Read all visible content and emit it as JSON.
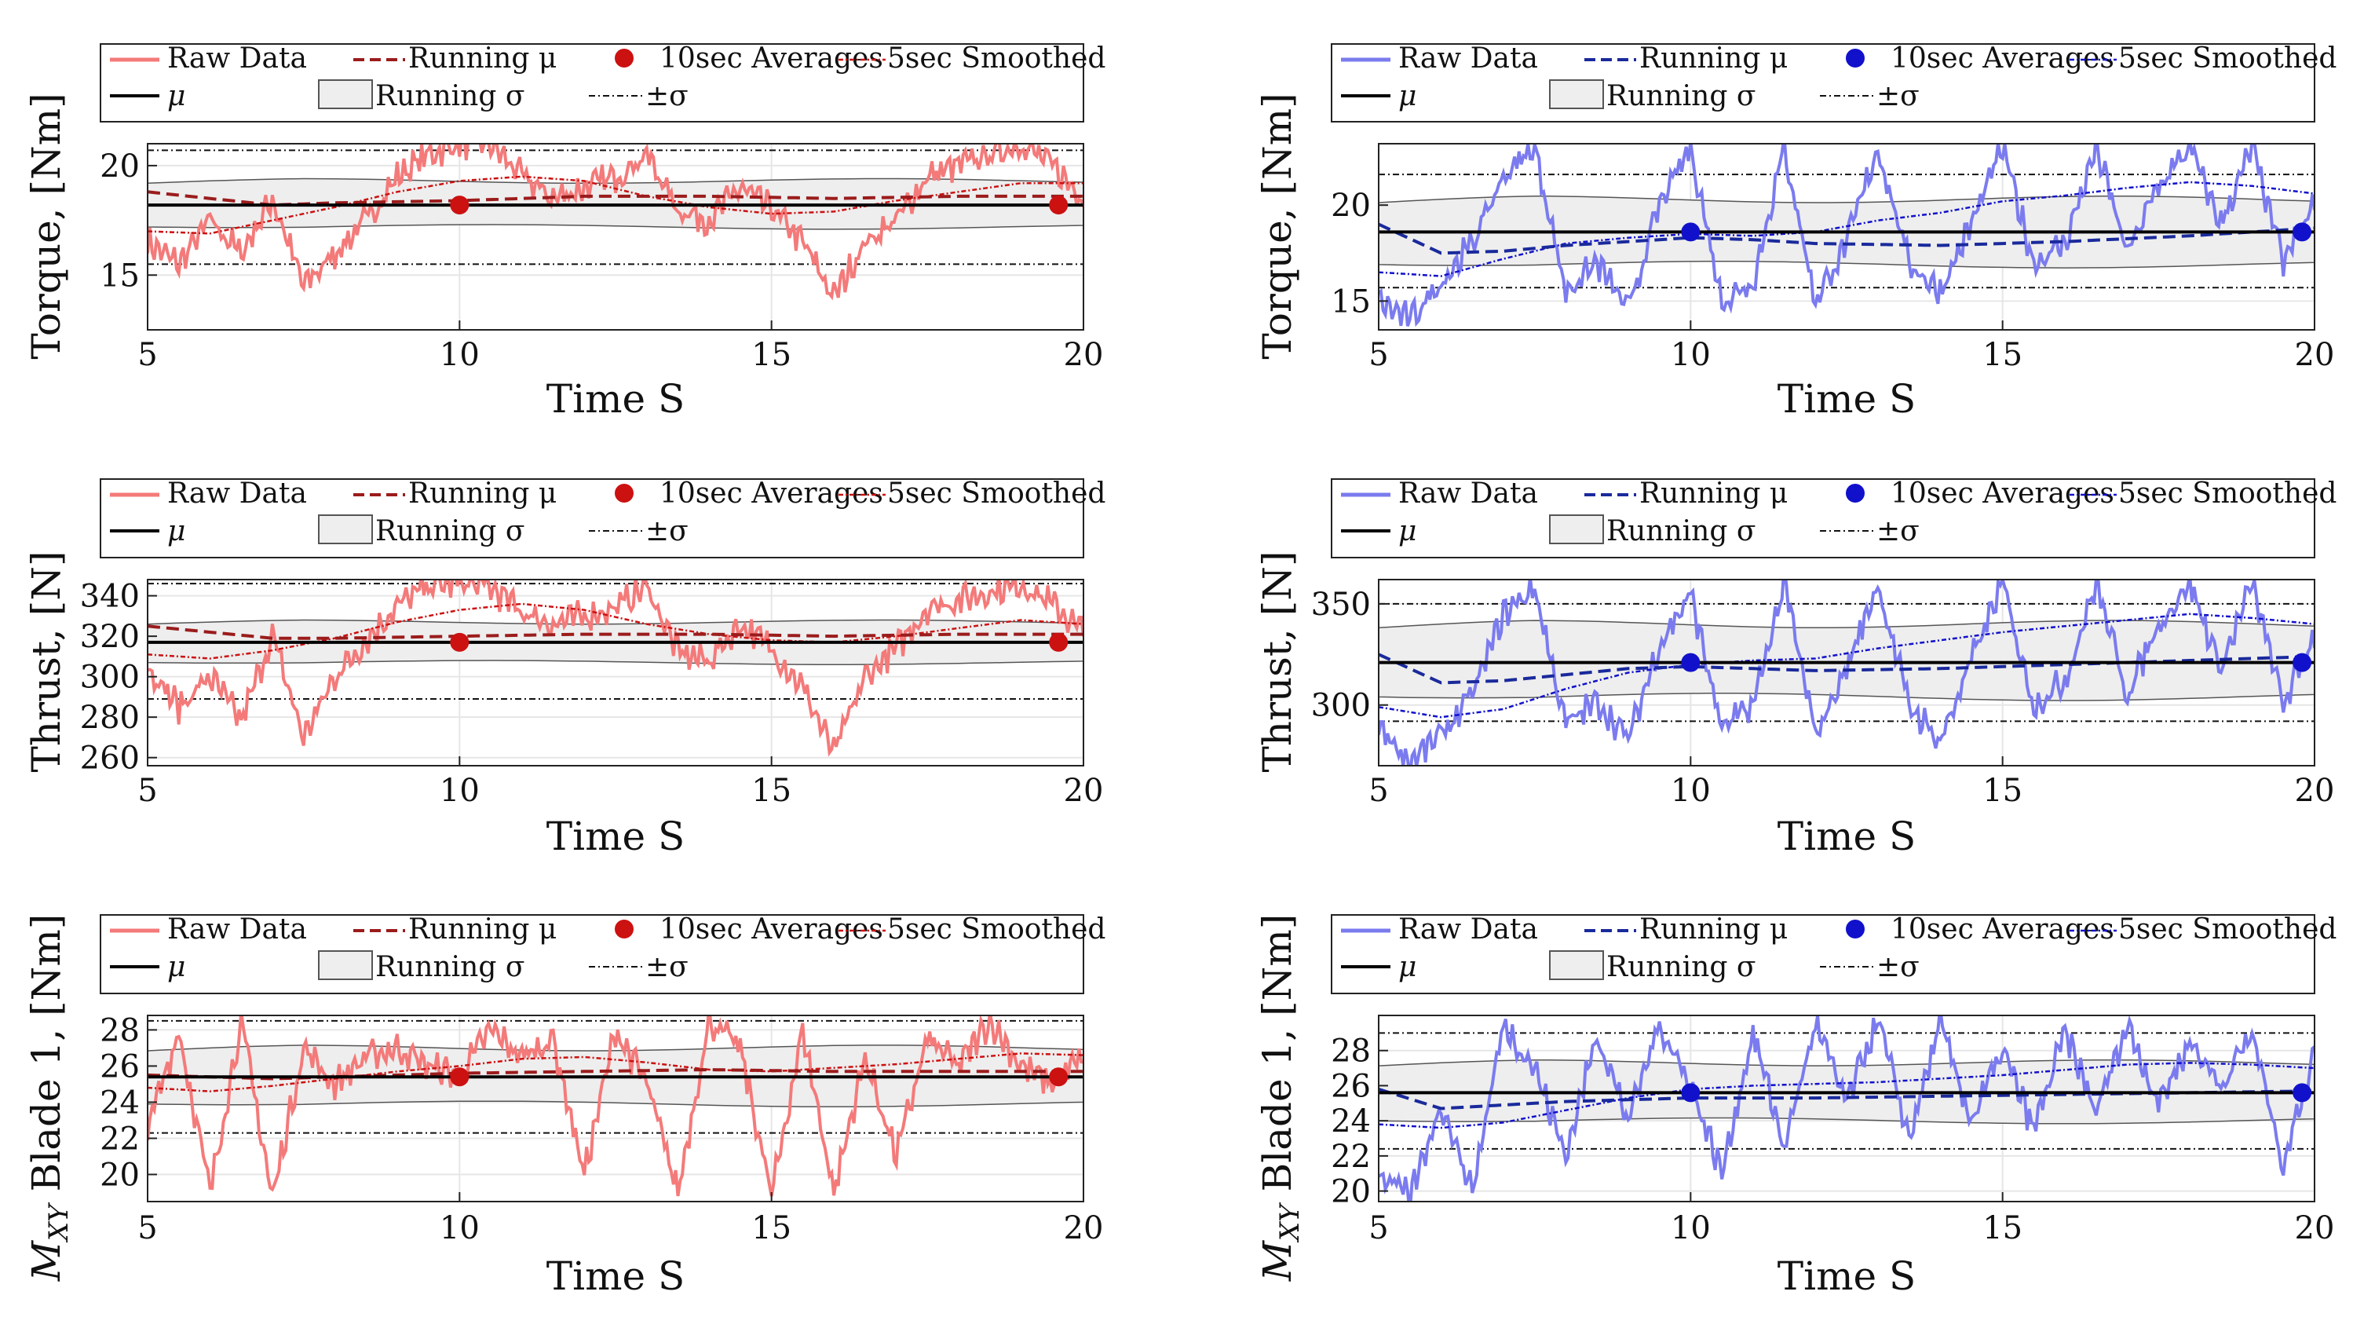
{
  "chart_data": [
    {
      "type": "line",
      "panel": "left-top",
      "color": "#f47a7a",
      "dark": "#9b1c1c",
      "dot": "#cc1111",
      "title": "",
      "xlabel": "Time S",
      "ylabel": "Torque, [Nm]",
      "xlim": [
        5,
        20
      ],
      "ylim": [
        12.5,
        21
      ],
      "xticks": [
        5,
        10,
        15,
        20
      ],
      "yticks": [
        15,
        20
      ],
      "mu": 18.2,
      "sigma_band": [
        17.2,
        19.3
      ],
      "pm_sigma": [
        15.5,
        20.7
      ],
      "averages": {
        "x": [
          10,
          19.6
        ],
        "y": [
          18.2,
          18.2
        ]
      },
      "running_mu": {
        "x": [
          5,
          6,
          7,
          8,
          10,
          12,
          14,
          16,
          18,
          20
        ],
        "y": [
          18.8,
          18.5,
          18.2,
          18.3,
          18.4,
          18.6,
          18.6,
          18.5,
          18.6,
          18.6
        ]
      },
      "smoothed": {
        "x": [
          5,
          6,
          7,
          8,
          9,
          10,
          11,
          12,
          13,
          14,
          15,
          16,
          17,
          18,
          19,
          20
        ],
        "y": [
          17.0,
          16.9,
          17.5,
          18.1,
          18.8,
          19.3,
          19.5,
          19.3,
          18.6,
          18.1,
          17.8,
          17.9,
          18.4,
          18.8,
          19.2,
          19.2
        ]
      },
      "raw_envelope": {
        "x": [
          5,
          5.5,
          6,
          6.5,
          7,
          7.5,
          8,
          8.5,
          9,
          9.5,
          10,
          10.5,
          11,
          11.5,
          12,
          12.5,
          13,
          13.5,
          14,
          14.5,
          15,
          15.5,
          16,
          16.5,
          17,
          17.5,
          18,
          18.5,
          19,
          19.5,
          20
        ],
        "y": [
          16.5,
          15.5,
          17.5,
          16.0,
          18.5,
          14.5,
          16.0,
          17.5,
          19.5,
          20.5,
          21.0,
          21.0,
          19.5,
          18.5,
          19.0,
          19.5,
          20.5,
          18.0,
          17.5,
          19.0,
          18.0,
          16.5,
          14.0,
          16.5,
          17.5,
          19.5,
          20.0,
          20.5,
          21.0,
          20.0,
          18.5
        ]
      },
      "legend": {
        "raw": "Raw Data",
        "run_mu": "Running μ",
        "avg": "10sec Averages",
        "smooth": "5sec Smoothed",
        "mu": "μ",
        "run_sigma": "Running σ",
        "pm": "±σ"
      }
    },
    {
      "type": "line",
      "panel": "left-middle",
      "color": "#f47a7a",
      "dark": "#9b1c1c",
      "dot": "#cc1111",
      "title": "",
      "xlabel": "Time S",
      "ylabel": "Thrust, [N]",
      "xlim": [
        5,
        20
      ],
      "ylim": [
        256,
        348
      ],
      "xticks": [
        5,
        10,
        15,
        20
      ],
      "yticks": [
        260,
        280,
        300,
        320,
        340
      ],
      "mu": 317,
      "sigma_band": [
        307,
        327
      ],
      "pm_sigma": [
        289,
        346
      ],
      "averages": {
        "x": [
          10,
          19.6
        ],
        "y": [
          317,
          317
        ]
      },
      "running_mu": {
        "x": [
          5,
          6,
          7,
          8,
          10,
          12,
          14,
          16,
          18,
          20
        ],
        "y": [
          325,
          322,
          319,
          319,
          320,
          321,
          321,
          320,
          321,
          321
        ]
      },
      "smoothed": {
        "x": [
          5,
          6,
          7,
          8,
          9,
          10,
          11,
          12,
          13,
          14,
          15,
          16,
          17,
          18,
          19,
          20
        ],
        "y": [
          311,
          309,
          313,
          319,
          327,
          333,
          336,
          333,
          326,
          321,
          318,
          317,
          320,
          324,
          328,
          326
        ]
      },
      "raw_envelope": {
        "x": [
          5,
          5.5,
          6,
          6.5,
          7,
          7.5,
          8,
          8.5,
          9,
          9.5,
          10,
          10.5,
          11,
          11.5,
          12,
          12.5,
          13,
          13.5,
          14,
          14.5,
          15,
          15.5,
          16,
          16.5,
          17,
          17.5,
          18,
          18.5,
          19,
          19.5,
          20
        ],
        "y": [
          305,
          285,
          300,
          278,
          320,
          270,
          300,
          318,
          335,
          345,
          346,
          344,
          332,
          326,
          330,
          334,
          345,
          312,
          308,
          326,
          314,
          295,
          262,
          300,
          314,
          334,
          338,
          342,
          346,
          336,
          322
        ]
      },
      "legend": {
        "raw": "Raw Data",
        "run_mu": "Running μ",
        "avg": "10sec Averages",
        "smooth": "5sec Smoothed",
        "mu": "μ",
        "run_sigma": "Running σ",
        "pm": "±σ"
      }
    },
    {
      "type": "line",
      "panel": "left-bottom",
      "color": "#f47a7a",
      "dark": "#9b1c1c",
      "dot": "#cc1111",
      "title": "",
      "xlabel": "Time S",
      "ylabel": "M_XY Blade 1, [Nm]",
      "xlim": [
        5,
        20
      ],
      "ylim": [
        18.5,
        28.8
      ],
      "xticks": [
        5,
        10,
        15,
        20
      ],
      "yticks": [
        20,
        22,
        24,
        26,
        28
      ],
      "mu": 25.4,
      "sigma_band": [
        23.9,
        27.0
      ],
      "pm_sigma": [
        22.3,
        28.5
      ],
      "averages": {
        "x": [
          10,
          19.6
        ],
        "y": [
          25.4,
          25.4
        ]
      },
      "running_mu": {
        "x": [
          5,
          6,
          7,
          8,
          10,
          12,
          14,
          16,
          18,
          20
        ],
        "y": [
          25.5,
          25.4,
          25.3,
          25.4,
          25.6,
          25.7,
          25.8,
          25.7,
          25.7,
          25.7
        ]
      },
      "smoothed": {
        "x": [
          5,
          6,
          7,
          8,
          9,
          10,
          11,
          12,
          13,
          14,
          15,
          16,
          17,
          18,
          19,
          20
        ],
        "y": [
          24.8,
          24.6,
          24.9,
          25.3,
          25.7,
          26.0,
          26.4,
          26.5,
          26.2,
          25.8,
          25.7,
          25.9,
          26.1,
          26.4,
          26.7,
          26.6
        ]
      },
      "raw_envelope": {
        "x": [
          5,
          5.5,
          6,
          6.5,
          7,
          7.5,
          8,
          8.5,
          9,
          9.5,
          10,
          10.5,
          11,
          11.5,
          12,
          12.5,
          13,
          13.5,
          14,
          14.5,
          15,
          15.5,
          16,
          16.5,
          17,
          17.5,
          18,
          18.5,
          19,
          19.5,
          20
        ],
        "y": [
          22.5,
          28.0,
          19.0,
          28.5,
          18.7,
          27.0,
          25.0,
          26.5,
          27.0,
          26.0,
          25.5,
          28.0,
          26.5,
          27.5,
          20.0,
          28.0,
          25.0,
          19.0,
          28.5,
          27.0,
          18.8,
          28.0,
          19.0,
          26.5,
          21.0,
          27.5,
          26.0,
          28.5,
          26.0,
          25.0,
          26.5
        ]
      },
      "legend": {
        "raw": "Raw Data",
        "run_mu": "Running μ",
        "avg": "10sec Averages",
        "smooth": "5sec Smoothed",
        "mu": "μ",
        "run_sigma": "Running σ",
        "pm": "±σ"
      }
    },
    {
      "type": "line",
      "panel": "right-top",
      "color": "#7b7bef",
      "dark": "#1a2a9c",
      "dot": "#1111cc",
      "title": "",
      "xlabel": "Time S",
      "ylabel": "Torque, [Nm]",
      "xlim": [
        5,
        20
      ],
      "ylim": [
        13.5,
        23.2
      ],
      "xticks": [
        5,
        10,
        15,
        20
      ],
      "yticks": [
        15,
        20
      ],
      "mu": 18.6,
      "sigma_band": [
        16.9,
        20.3
      ],
      "pm_sigma": [
        15.7,
        21.6
      ],
      "averages": {
        "x": [
          10,
          19.8
        ],
        "y": [
          18.6,
          18.6
        ]
      },
      "running_mu": {
        "x": [
          5,
          6,
          7,
          8,
          9,
          10,
          11,
          12,
          14,
          16,
          18,
          20
        ],
        "y": [
          19.0,
          17.5,
          17.6,
          17.9,
          18.1,
          18.3,
          18.2,
          18.0,
          17.9,
          18.1,
          18.4,
          18.8
        ]
      },
      "smoothed": {
        "x": [
          5,
          6,
          7,
          8,
          9,
          10,
          11,
          12,
          13,
          14,
          15,
          16,
          17,
          18,
          19,
          20
        ],
        "y": [
          16.5,
          16.3,
          17.2,
          18.0,
          18.3,
          18.5,
          18.4,
          18.6,
          19.2,
          19.6,
          20.2,
          20.5,
          20.9,
          21.2,
          21.0,
          20.6
        ]
      },
      "raw_envelope": {
        "x": [
          5,
          5.5,
          6,
          6.5,
          7,
          7.5,
          8,
          8.5,
          9,
          9.5,
          10,
          10.5,
          11,
          11.5,
          12,
          12.5,
          13,
          13.5,
          14,
          14.5,
          15,
          15.5,
          16,
          16.5,
          17,
          17.5,
          18,
          18.5,
          19,
          19.5,
          20
        ],
        "y": [
          15.0,
          14.0,
          16.0,
          18.0,
          21.5,
          23.0,
          15.5,
          17.0,
          14.5,
          20.0,
          23.0,
          15.0,
          16.0,
          23.0,
          15.0,
          18.0,
          23.0,
          17.0,
          15.5,
          19.0,
          23.0,
          17.0,
          18.0,
          23.0,
          17.5,
          21.0,
          23.0,
          19.0,
          23.0,
          17.0,
          20.0
        ]
      },
      "legend": {
        "raw": "Raw Data",
        "run_mu": "Running μ",
        "avg": "10sec Averages",
        "smooth": "5sec Smoothed",
        "mu": "μ",
        "run_sigma": "Running σ",
        "pm": "±σ"
      }
    },
    {
      "type": "line",
      "panel": "right-middle",
      "color": "#7b7bef",
      "dark": "#1a2a9c",
      "dot": "#1111cc",
      "title": "",
      "xlabel": "Time S",
      "ylabel": "Thrust, [N]",
      "xlim": [
        5,
        20
      ],
      "ylim": [
        270,
        362
      ],
      "xticks": [
        5,
        10,
        15,
        20
      ],
      "yticks": [
        300,
        350
      ],
      "mu": 321,
      "sigma_band": [
        304,
        340
      ],
      "pm_sigma": [
        292,
        350
      ],
      "averages": {
        "x": [
          10,
          19.8
        ],
        "y": [
          321,
          321
        ]
      },
      "running_mu": {
        "x": [
          5,
          6,
          7,
          8,
          9,
          10,
          11,
          12,
          14,
          16,
          18,
          20
        ],
        "y": [
          325,
          311,
          312,
          315,
          318,
          319,
          318,
          317,
          318,
          320,
          322,
          324
        ]
      },
      "smoothed": {
        "x": [
          5,
          6,
          7,
          8,
          9,
          10,
          11,
          12,
          13,
          14,
          15,
          16,
          17,
          18,
          19,
          20
        ],
        "y": [
          299,
          294,
          298,
          308,
          316,
          320,
          322,
          323,
          328,
          332,
          336,
          339,
          342,
          345,
          343,
          340
        ]
      },
      "raw_envelope": {
        "x": [
          5,
          5.5,
          6,
          6.5,
          7,
          7.5,
          8,
          8.5,
          9,
          9.5,
          10,
          10.5,
          11,
          11.5,
          12,
          12.5,
          13,
          13.5,
          14,
          14.5,
          15,
          15.5,
          16,
          16.5,
          17,
          17.5,
          18,
          18.5,
          19,
          19.5,
          20
        ],
        "y": [
          290,
          272,
          285,
          305,
          345,
          358,
          290,
          302,
          283,
          330,
          355,
          288,
          300,
          360,
          285,
          318,
          360,
          300,
          282,
          322,
          360,
          300,
          312,
          360,
          305,
          340,
          360,
          318,
          360,
          300,
          335
        ]
      },
      "legend": {
        "raw": "Raw Data",
        "run_mu": "Running μ",
        "avg": "10sec Averages",
        "smooth": "5sec Smoothed",
        "mu": "μ",
        "run_sigma": "Running σ",
        "pm": "±σ"
      }
    },
    {
      "type": "line",
      "panel": "right-bottom",
      "color": "#7b7bef",
      "dark": "#1a2a9c",
      "dot": "#1111cc",
      "title": "",
      "xlabel": "Time S",
      "ylabel": "M_XY Blade 1, [Nm]",
      "xlim": [
        5,
        20
      ],
      "ylim": [
        19.4,
        30.0
      ],
      "xticks": [
        5,
        10,
        15,
        20
      ],
      "yticks": [
        20,
        22,
        24,
        26,
        28
      ],
      "mu": 25.6,
      "sigma_band": [
        24.0,
        27.3
      ],
      "pm_sigma": [
        22.4,
        29.0
      ],
      "averages": {
        "x": [
          10,
          19.8
        ],
        "y": [
          25.6,
          25.6
        ]
      },
      "running_mu": {
        "x": [
          5,
          6,
          7,
          8,
          9,
          10,
          11,
          12,
          14,
          16,
          18,
          20
        ],
        "y": [
          25.8,
          24.7,
          24.9,
          25.1,
          25.2,
          25.3,
          25.3,
          25.3,
          25.4,
          25.5,
          25.6,
          25.7
        ]
      },
      "smoothed": {
        "x": [
          5,
          6,
          7,
          8,
          9,
          10,
          11,
          12,
          13,
          14,
          15,
          16,
          17,
          18,
          19,
          20
        ],
        "y": [
          23.8,
          23.6,
          23.9,
          24.6,
          25.3,
          25.8,
          26.0,
          26.1,
          26.2,
          26.4,
          26.6,
          26.9,
          27.2,
          27.3,
          27.2,
          27.0
        ]
      },
      "raw_envelope": {
        "x": [
          5,
          5.5,
          6,
          6.5,
          7,
          7.5,
          8,
          8.5,
          9,
          9.5,
          10,
          10.5,
          11,
          11.5,
          12,
          12.5,
          13,
          13.5,
          14,
          14.5,
          15,
          15.5,
          16,
          16.5,
          17,
          17.5,
          18,
          18.5,
          19,
          19.5,
          20
        ],
        "y": [
          21.0,
          19.6,
          25.0,
          20.0,
          29.5,
          27.0,
          22.0,
          29.0,
          24.0,
          29.5,
          26.0,
          21.0,
          29.0,
          22.5,
          29.5,
          25.0,
          29.8,
          23.0,
          29.5,
          24.0,
          28.0,
          23.5,
          29.0,
          24.5,
          29.5,
          25.0,
          28.5,
          26.0,
          29.0,
          21.5,
          28.0
        ]
      },
      "legend": {
        "raw": "Raw Data",
        "run_mu": "Running μ",
        "avg": "10sec Averages",
        "smooth": "5sec Smoothed",
        "mu": "μ",
        "run_sigma": "Running σ",
        "pm": "±σ"
      }
    }
  ]
}
